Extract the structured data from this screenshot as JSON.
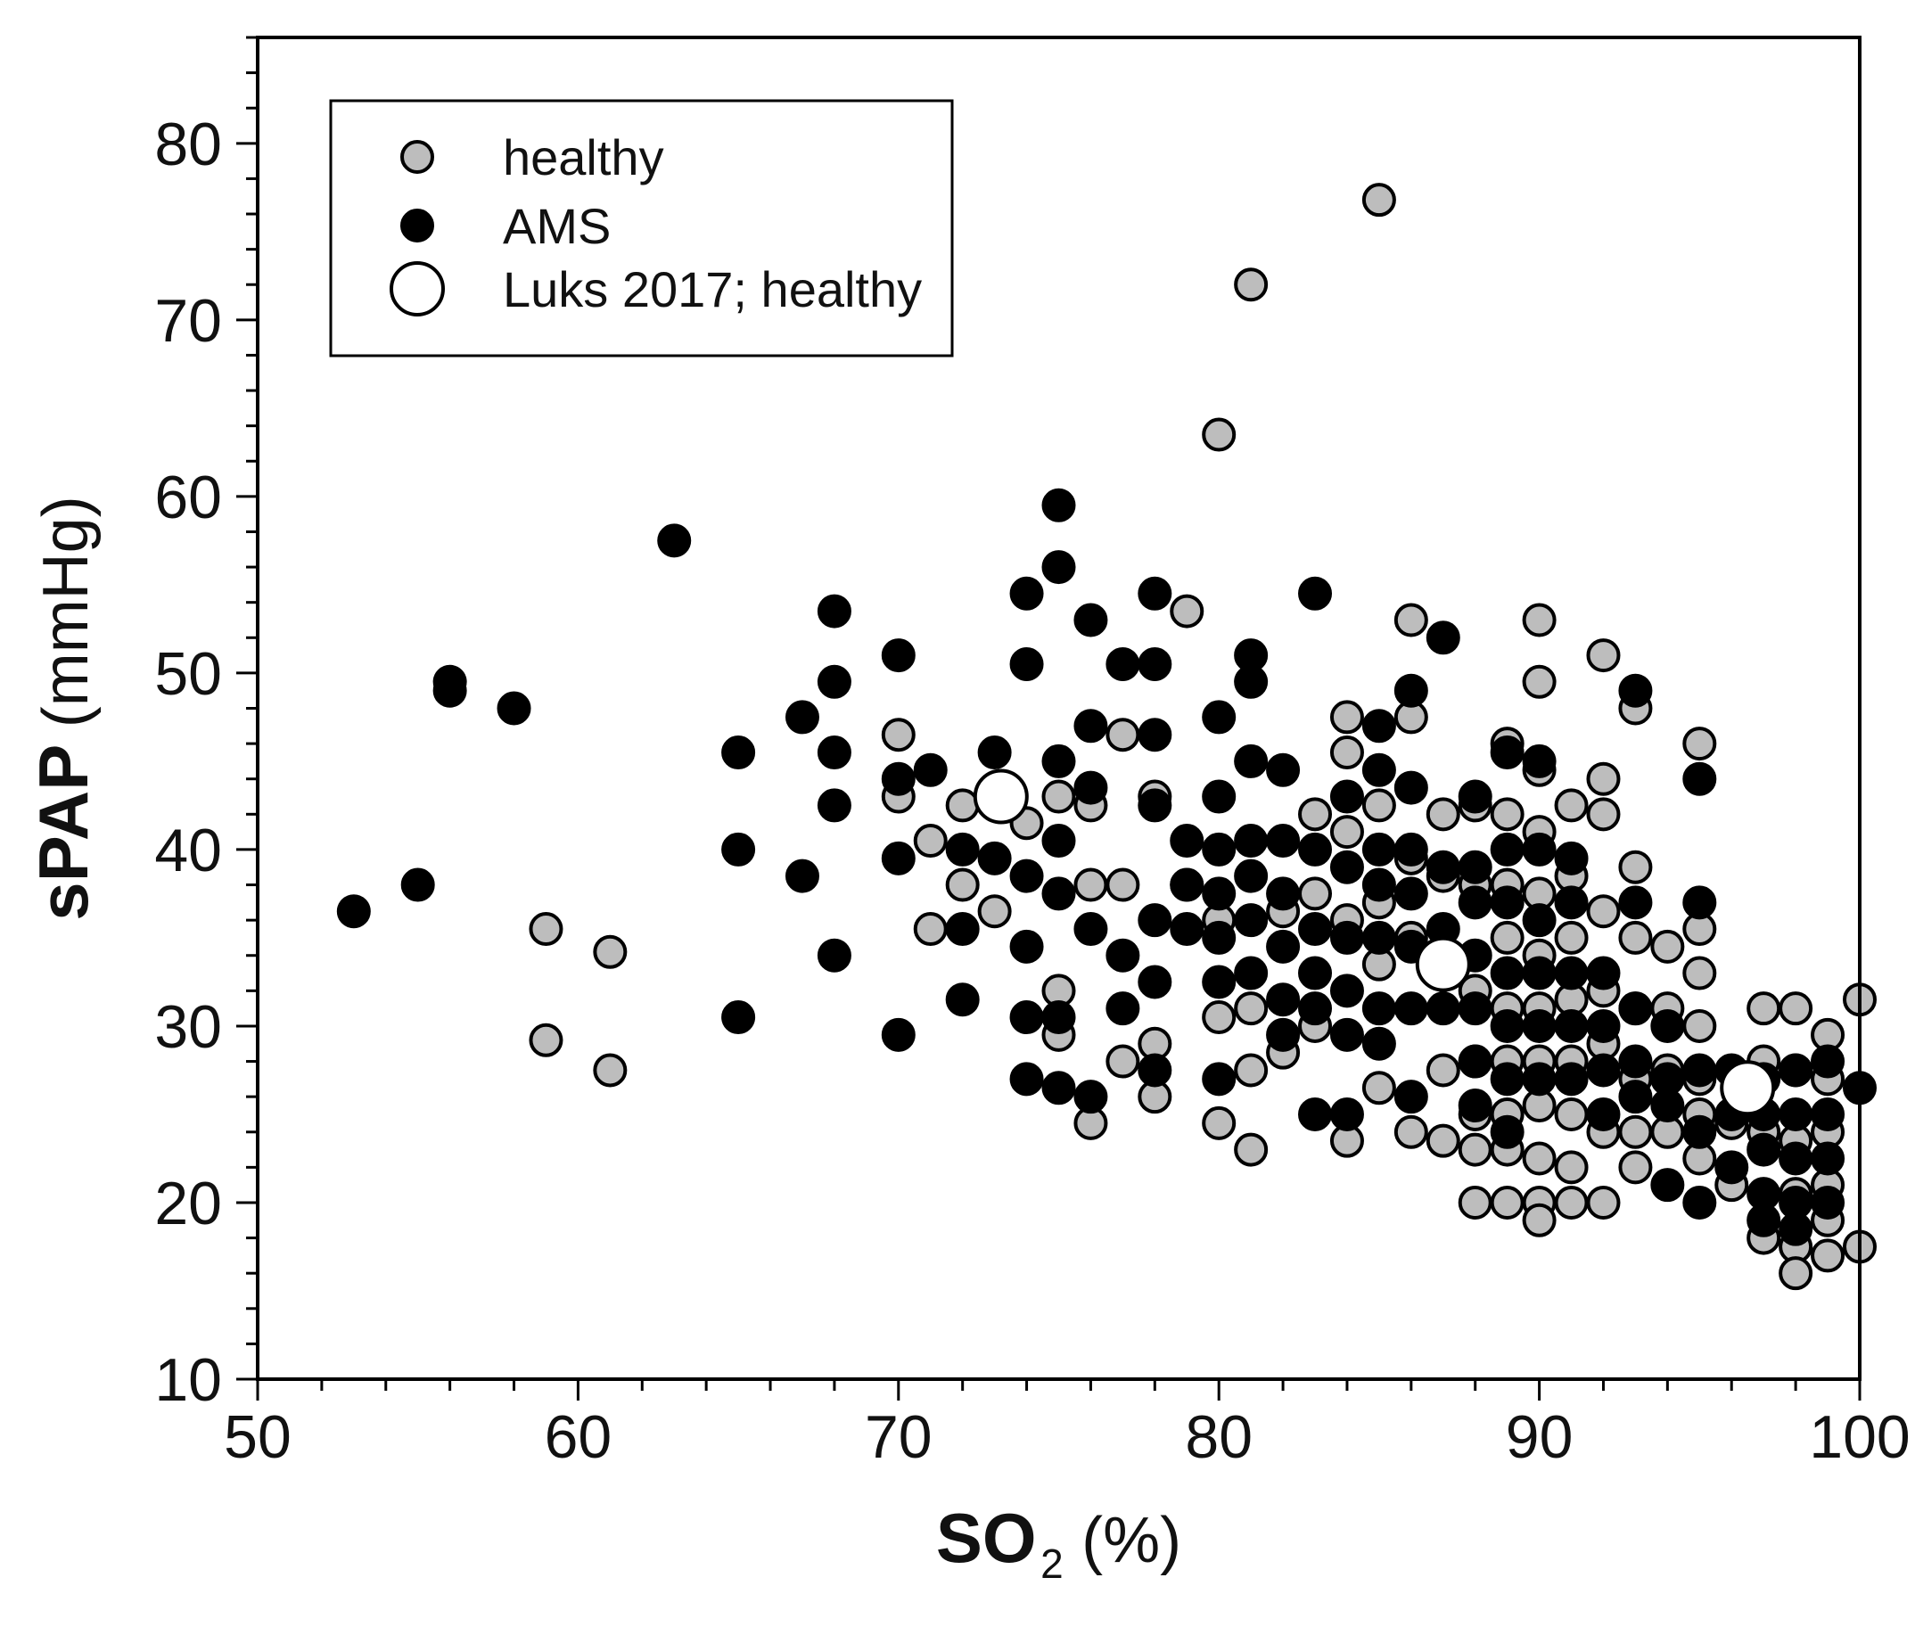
{
  "chart_data": {
    "type": "scatter",
    "title": "",
    "xlabel": {
      "main": "SO",
      "sub": "2",
      "unit": "(%)"
    },
    "ylabel": {
      "main": "sPAP",
      "unit": "(mmHg)"
    },
    "xlim": [
      50,
      100
    ],
    "ylim": [
      10,
      86
    ],
    "xticks": [
      50,
      60,
      70,
      80,
      90,
      100
    ],
    "yticks": [
      10,
      20,
      30,
      40,
      50,
      60,
      70,
      80
    ],
    "grid": false,
    "legend_position": "top-left",
    "colors": {
      "healthy_fill": "#bdbdbd",
      "ams_fill": "#000000",
      "luks_fill": "#ffffff",
      "stroke": "#000000"
    },
    "series": [
      {
        "name": "healthy",
        "marker": "healthy",
        "points": [
          [
            59,
            35.5
          ],
          [
            59,
            29.2
          ],
          [
            61,
            34.2
          ],
          [
            61,
            27.5
          ],
          [
            70,
            46.5
          ],
          [
            70,
            43
          ],
          [
            71,
            40.5
          ],
          [
            71,
            35.5
          ],
          [
            72,
            42.5
          ],
          [
            72,
            38
          ],
          [
            73,
            36.5
          ],
          [
            74,
            41.5
          ],
          [
            75,
            43
          ],
          [
            75,
            32
          ],
          [
            75,
            29.5
          ],
          [
            76,
            42.5
          ],
          [
            76,
            38
          ],
          [
            76,
            24.5
          ],
          [
            77,
            46.5
          ],
          [
            77,
            38
          ],
          [
            77,
            28
          ],
          [
            78,
            43
          ],
          [
            78,
            29
          ],
          [
            78,
            26
          ],
          [
            79,
            53.5
          ],
          [
            79,
            38
          ],
          [
            80,
            63.5
          ],
          [
            80,
            36
          ],
          [
            80,
            30.5
          ],
          [
            80,
            24.5
          ],
          [
            81,
            72
          ],
          [
            81,
            31
          ],
          [
            81,
            27.5
          ],
          [
            81,
            23
          ],
          [
            82,
            36.5
          ],
          [
            82,
            28.5
          ],
          [
            83,
            42
          ],
          [
            83,
            37.5
          ],
          [
            83,
            30
          ],
          [
            84,
            47.5
          ],
          [
            84,
            45.5
          ],
          [
            84,
            41
          ],
          [
            84,
            36
          ],
          [
            84,
            23.5
          ],
          [
            85,
            76.8
          ],
          [
            85,
            42.5
          ],
          [
            85,
            37
          ],
          [
            85,
            33.5
          ],
          [
            85,
            26.5
          ],
          [
            86,
            53
          ],
          [
            86,
            47.5
          ],
          [
            86,
            39.5
          ],
          [
            86,
            35
          ],
          [
            86,
            24
          ],
          [
            87,
            42
          ],
          [
            87,
            38.5
          ],
          [
            87,
            34
          ],
          [
            87,
            27.5
          ],
          [
            87,
            23.5
          ],
          [
            88,
            42.5
          ],
          [
            88,
            38
          ],
          [
            88,
            32
          ],
          [
            88,
            28
          ],
          [
            88,
            25
          ],
          [
            88,
            23
          ],
          [
            88,
            20
          ],
          [
            89,
            46
          ],
          [
            89,
            42
          ],
          [
            89,
            38
          ],
          [
            89,
            35
          ],
          [
            89,
            31
          ],
          [
            89,
            28
          ],
          [
            89,
            25
          ],
          [
            89,
            23
          ],
          [
            89,
            20
          ],
          [
            90,
            53
          ],
          [
            90,
            49.5
          ],
          [
            90,
            44.5
          ],
          [
            90,
            41
          ],
          [
            90,
            37.5
          ],
          [
            90,
            34
          ],
          [
            90,
            31
          ],
          [
            90,
            28
          ],
          [
            90,
            25.5
          ],
          [
            90,
            22.5
          ],
          [
            90,
            20
          ],
          [
            90,
            19
          ],
          [
            91,
            42.5
          ],
          [
            91,
            38.5
          ],
          [
            91,
            35
          ],
          [
            91,
            31.5
          ],
          [
            91,
            28
          ],
          [
            91,
            25
          ],
          [
            91,
            22
          ],
          [
            91,
            20
          ],
          [
            92,
            51
          ],
          [
            92,
            44
          ],
          [
            92,
            42
          ],
          [
            92,
            36.5
          ],
          [
            92,
            32
          ],
          [
            92,
            29
          ],
          [
            92,
            24
          ],
          [
            92,
            20
          ],
          [
            93,
            48
          ],
          [
            93,
            39
          ],
          [
            93,
            35
          ],
          [
            93,
            31
          ],
          [
            93,
            27
          ],
          [
            93,
            24
          ],
          [
            93,
            22
          ],
          [
            94,
            34.5
          ],
          [
            94,
            31
          ],
          [
            94,
            27.5
          ],
          [
            94,
            24
          ],
          [
            95,
            46
          ],
          [
            95,
            35.5
          ],
          [
            95,
            33
          ],
          [
            95,
            30
          ],
          [
            95,
            27
          ],
          [
            95,
            25
          ],
          [
            95,
            22.5
          ],
          [
            96,
            24.5
          ],
          [
            96,
            21
          ],
          [
            97,
            31
          ],
          [
            97,
            28
          ],
          [
            97,
            24
          ],
          [
            97,
            18
          ],
          [
            98,
            31
          ],
          [
            98,
            27.5
          ],
          [
            98,
            23.5
          ],
          [
            98,
            20.5
          ],
          [
            98,
            17.5
          ],
          [
            98,
            16
          ],
          [
            99,
            29.5
          ],
          [
            99,
            27
          ],
          [
            99,
            24
          ],
          [
            99,
            21
          ],
          [
            99,
            19
          ],
          [
            99,
            17
          ],
          [
            100,
            31.5
          ],
          [
            100,
            17.5
          ]
        ]
      },
      {
        "name": "AMS",
        "marker": "ams",
        "points": [
          [
            53,
            36.5
          ],
          [
            55,
            38
          ],
          [
            56,
            49.5
          ],
          [
            56,
            49
          ],
          [
            58,
            48
          ],
          [
            63,
            57.5
          ],
          [
            65,
            45.5
          ],
          [
            65,
            40
          ],
          [
            65,
            30.5
          ],
          [
            67,
            47.5
          ],
          [
            67,
            38.5
          ],
          [
            68,
            53.5
          ],
          [
            68,
            49.5
          ],
          [
            68,
            45.5
          ],
          [
            68,
            42.5
          ],
          [
            68,
            34
          ],
          [
            70,
            51
          ],
          [
            70,
            44
          ],
          [
            70,
            39.5
          ],
          [
            70,
            29.5
          ],
          [
            71,
            44.5
          ],
          [
            72,
            40
          ],
          [
            72,
            35.5
          ],
          [
            72,
            31.5
          ],
          [
            73,
            45.5
          ],
          [
            73,
            39.5
          ],
          [
            74,
            54.5
          ],
          [
            74,
            50.5
          ],
          [
            74,
            38.5
          ],
          [
            74,
            34.5
          ],
          [
            74,
            30.5
          ],
          [
            74,
            27
          ],
          [
            75,
            59.5
          ],
          [
            75,
            56
          ],
          [
            75,
            45
          ],
          [
            75,
            40.5
          ],
          [
            75,
            37.5
          ],
          [
            75,
            30.5
          ],
          [
            75,
            26.5
          ],
          [
            76,
            53
          ],
          [
            76,
            47
          ],
          [
            76,
            43.5
          ],
          [
            76,
            35.5
          ],
          [
            76,
            26
          ],
          [
            77,
            50.5
          ],
          [
            77,
            34
          ],
          [
            77,
            31
          ],
          [
            78,
            54.5
          ],
          [
            78,
            50.5
          ],
          [
            78,
            46.5
          ],
          [
            78,
            42.5
          ],
          [
            78,
            36
          ],
          [
            78,
            32.5
          ],
          [
            78,
            27.5
          ],
          [
            79,
            40.5
          ],
          [
            79,
            38
          ],
          [
            79,
            35.5
          ],
          [
            80,
            47.5
          ],
          [
            80,
            43
          ],
          [
            80,
            40
          ],
          [
            80,
            37.5
          ],
          [
            80,
            35
          ],
          [
            80,
            32.5
          ],
          [
            80,
            27
          ],
          [
            81,
            51
          ],
          [
            81,
            49.5
          ],
          [
            81,
            45
          ],
          [
            81,
            40.5
          ],
          [
            81,
            38.5
          ],
          [
            81,
            36
          ],
          [
            81,
            33
          ],
          [
            82,
            44.5
          ],
          [
            82,
            40.5
          ],
          [
            82,
            37.5
          ],
          [
            82,
            34.5
          ],
          [
            82,
            31.5
          ],
          [
            82,
            29.5
          ],
          [
            83,
            54.5
          ],
          [
            83,
            40
          ],
          [
            83,
            35.5
          ],
          [
            83,
            33
          ],
          [
            83,
            31
          ],
          [
            83,
            25
          ],
          [
            84,
            43
          ],
          [
            84,
            39
          ],
          [
            84,
            35
          ],
          [
            84,
            32
          ],
          [
            84,
            29.5
          ],
          [
            84,
            25
          ],
          [
            85,
            47
          ],
          [
            85,
            44.5
          ],
          [
            85,
            40
          ],
          [
            85,
            38
          ],
          [
            85,
            35
          ],
          [
            85,
            31
          ],
          [
            85,
            29
          ],
          [
            86,
            49
          ],
          [
            86,
            43.5
          ],
          [
            86,
            40
          ],
          [
            86,
            37.5
          ],
          [
            86,
            34.5
          ],
          [
            86,
            31
          ],
          [
            86,
            26
          ],
          [
            87,
            52
          ],
          [
            87,
            39
          ],
          [
            87,
            35.5
          ],
          [
            87,
            31
          ],
          [
            88,
            43
          ],
          [
            88,
            39
          ],
          [
            88,
            37
          ],
          [
            88,
            34
          ],
          [
            88,
            31
          ],
          [
            88,
            28
          ],
          [
            88,
            25.5
          ],
          [
            89,
            45.5
          ],
          [
            89,
            40
          ],
          [
            89,
            37
          ],
          [
            89,
            33
          ],
          [
            89,
            30
          ],
          [
            89,
            27
          ],
          [
            89,
            24
          ],
          [
            90,
            45
          ],
          [
            90,
            40
          ],
          [
            90,
            36
          ],
          [
            90,
            33
          ],
          [
            90,
            30
          ],
          [
            90,
            27
          ],
          [
            91,
            39.5
          ],
          [
            91,
            37
          ],
          [
            91,
            33
          ],
          [
            91,
            30
          ],
          [
            91,
            27
          ],
          [
            92,
            33
          ],
          [
            92,
            30
          ],
          [
            92,
            27.5
          ],
          [
            92,
            25
          ],
          [
            93,
            49
          ],
          [
            93,
            37
          ],
          [
            93,
            31
          ],
          [
            93,
            28
          ],
          [
            93,
            26
          ],
          [
            94,
            30
          ],
          [
            94,
            27
          ],
          [
            94,
            25.5
          ],
          [
            94,
            21
          ],
          [
            95,
            44
          ],
          [
            95,
            37
          ],
          [
            95,
            27.5
          ],
          [
            95,
            24
          ],
          [
            95,
            20
          ],
          [
            96,
            27.5
          ],
          [
            96,
            25
          ],
          [
            96,
            22
          ],
          [
            97,
            27
          ],
          [
            97,
            25
          ],
          [
            97,
            23
          ],
          [
            97,
            20.5
          ],
          [
            97,
            19
          ],
          [
            98,
            27.5
          ],
          [
            98,
            25
          ],
          [
            98,
            22.5
          ],
          [
            98,
            20
          ],
          [
            98,
            18.5
          ],
          [
            99,
            28
          ],
          [
            99,
            25
          ],
          [
            99,
            22.5
          ],
          [
            99,
            20
          ],
          [
            100,
            26.5
          ]
        ]
      },
      {
        "name": "Luks 2017; healthy",
        "marker": "luks",
        "points": [
          [
            73.2,
            43
          ],
          [
            87,
            33.5
          ],
          [
            96.5,
            26.5
          ]
        ]
      }
    ]
  }
}
